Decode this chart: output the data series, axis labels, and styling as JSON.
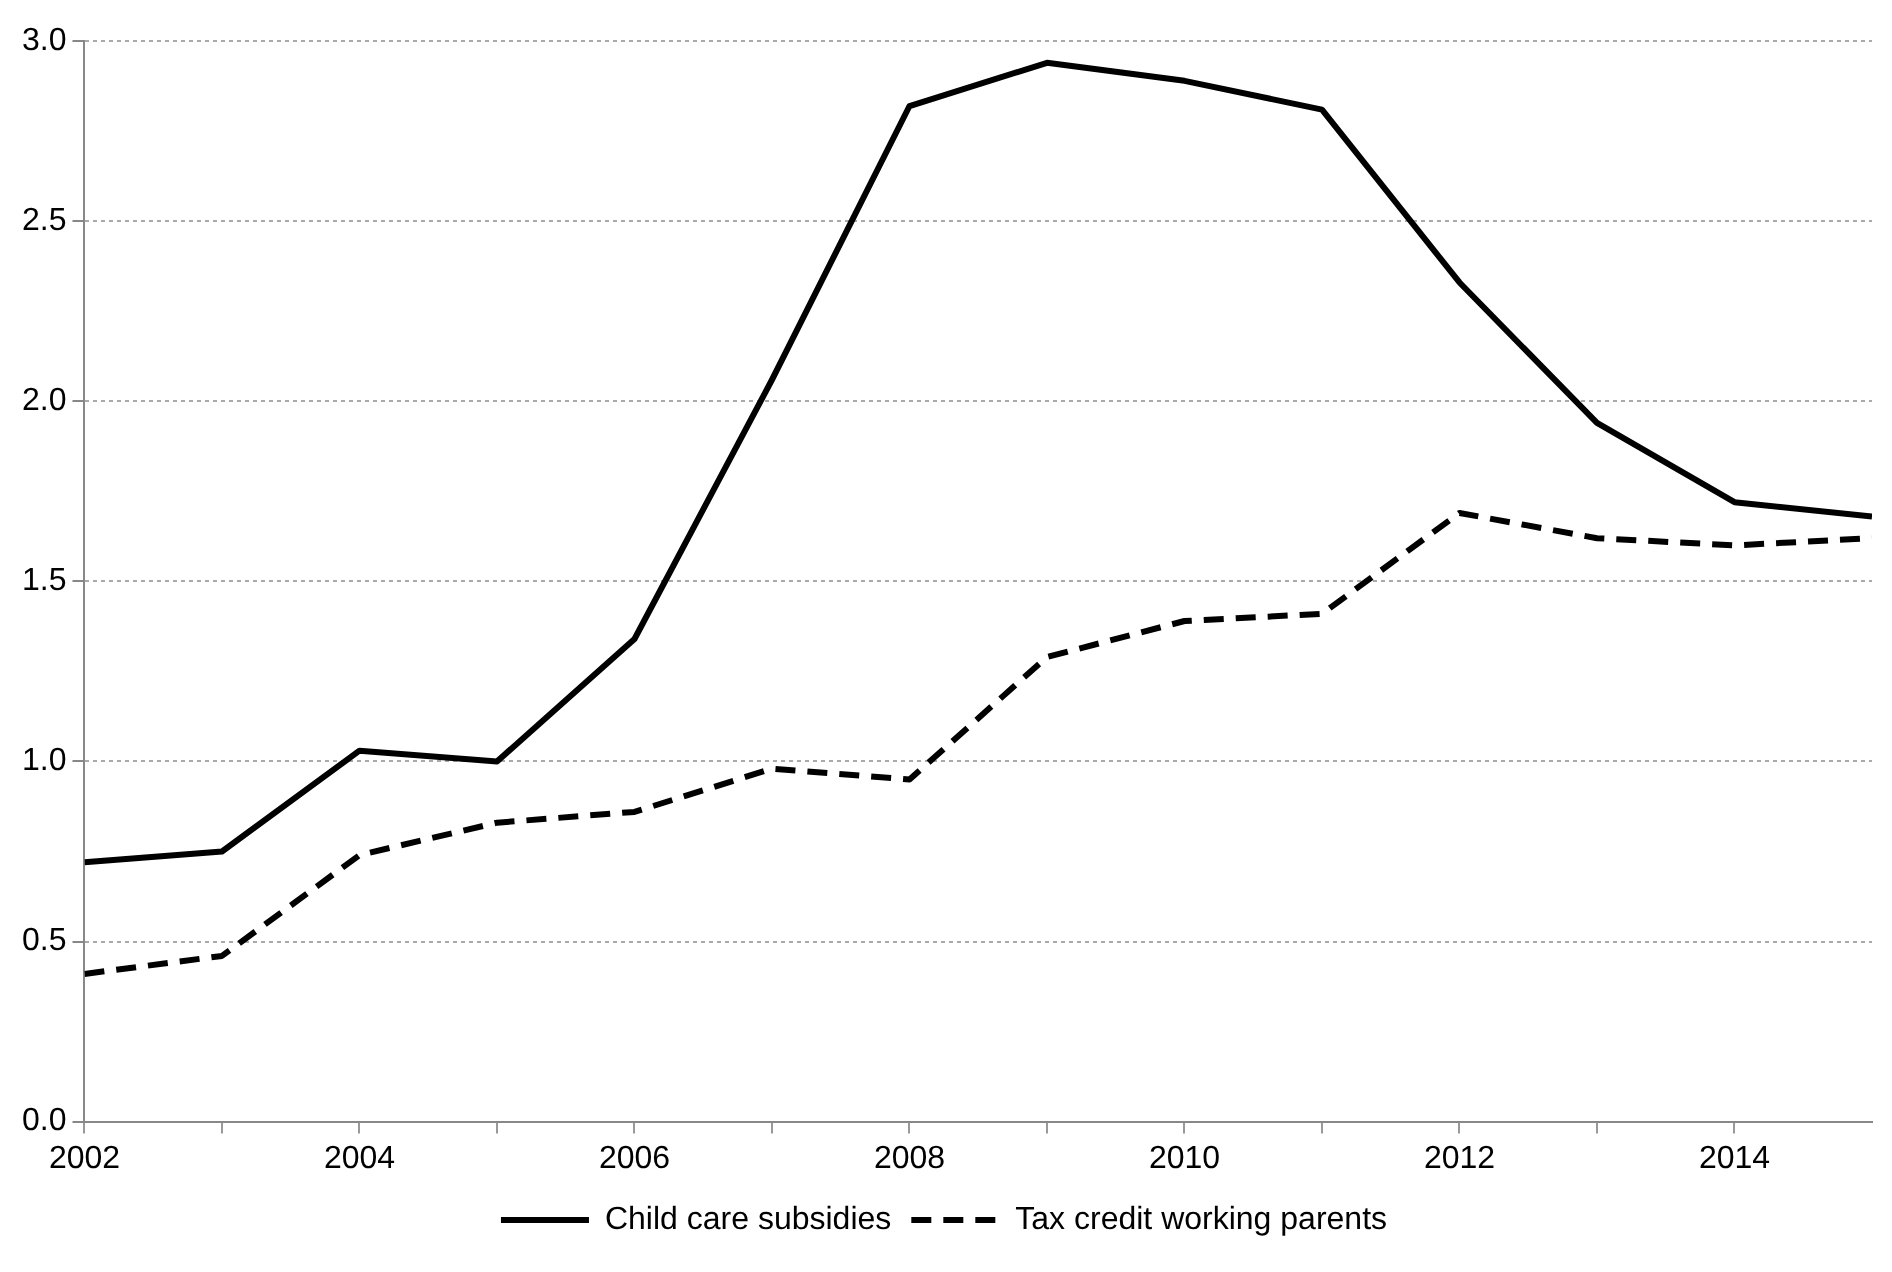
{
  "chart_data": {
    "type": "line",
    "x": [
      2002,
      2003,
      2004,
      2005,
      2006,
      2007,
      2008,
      2009,
      2010,
      2011,
      2012,
      2013,
      2014,
      2015
    ],
    "series": [
      {
        "name": "Child care subsidies",
        "color": "#000000",
        "line_style": "solid",
        "values": [
          0.72,
          0.75,
          1.03,
          1.0,
          1.34,
          2.06,
          2.82,
          2.94,
          2.89,
          2.81,
          2.33,
          1.94,
          1.72,
          1.68
        ]
      },
      {
        "name": "Tax credit working parents",
        "color": "#000000",
        "line_style": "dashed",
        "values": [
          0.41,
          0.46,
          0.74,
          0.83,
          0.86,
          0.98,
          0.95,
          1.29,
          1.39,
          1.41,
          1.69,
          1.62,
          1.6,
          1.62
        ]
      }
    ],
    "xlim": [
      2002,
      2015
    ],
    "xticks": [
      2002,
      {
        "value": 2003,
        "label": null
      },
      2004,
      {
        "value": 2005,
        "label": null
      },
      2006,
      {
        "value": 2007,
        "label": null
      },
      2008,
      {
        "value": 2009,
        "label": null
      },
      2010,
      {
        "value": 2011,
        "label": null
      },
      2012,
      {
        "value": 2013,
        "label": null
      },
      2014
    ],
    "ylim": [
      0,
      3.0
    ],
    "yticks": [
      {
        "value": 0,
        "label": "0.0"
      },
      0.5,
      {
        "value": 1,
        "label": "1.0"
      },
      1.5,
      {
        "value": 2,
        "label": "2.0"
      },
      2.5,
      {
        "value": 3,
        "label": "3.0"
      }
    ],
    "grid": "y",
    "legend": "bottom",
    "marker": "none"
  }
}
